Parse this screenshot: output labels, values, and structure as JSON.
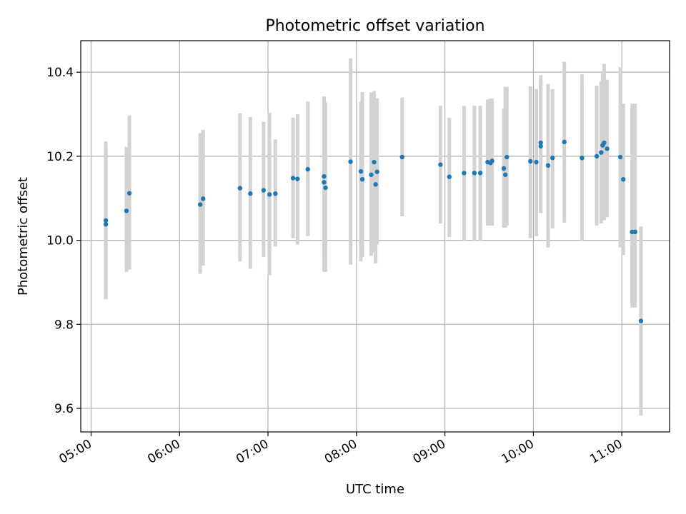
{
  "chart_data": {
    "type": "scatter",
    "title": "Photometric offset variation",
    "xlabel": "UTC time",
    "ylabel": "Photometric offset",
    "x_ticks": [
      "05:00",
      "06:00",
      "07:00",
      "08:00",
      "09:00",
      "10:00",
      "11:00"
    ],
    "x_tick_values": [
      5.0,
      6.0,
      7.0,
      8.0,
      9.0,
      10.0,
      11.0
    ],
    "y_ticks": [
      "9.6",
      "9.8",
      "10.0",
      "10.2",
      "10.4"
    ],
    "y_tick_values": [
      9.6,
      9.8,
      10.0,
      10.2,
      10.4
    ],
    "xlim": [
      4.883,
      11.54
    ],
    "ylim": [
      9.544,
      10.475
    ],
    "grid": true,
    "point_color": "#1f77b4",
    "errorbar_color": "#d3d3d3",
    "series": [
      {
        "x": [
          "05:10",
          "05:10",
          "05:24",
          "05:26",
          "06:14",
          "06:16",
          "06:41",
          "06:48",
          "06:57",
          "07:01",
          "07:05",
          "07:17",
          "07:20",
          "07:27",
          "07:38",
          "07:38",
          "07:39",
          "07:56",
          "08:03",
          "08:04",
          "08:10",
          "08:12",
          "08:13",
          "08:14",
          "08:31",
          "08:57",
          "09:03",
          "09:13",
          "09:20",
          "09:24",
          "09:29",
          "09:31",
          "09:32",
          "09:40",
          "09:41",
          "09:42",
          "09:58",
          "10:02",
          "10:05",
          "10:05",
          "10:10",
          "10:13",
          "10:21",
          "10:33",
          "10:33",
          "10:43",
          "10:46",
          "10:47",
          "10:48",
          "10:50",
          "10:59",
          "11:01",
          "11:07",
          "11:09",
          "11:13"
        ],
        "y": [
          10.038,
          10.047,
          10.07,
          10.112,
          10.085,
          10.099,
          10.124,
          10.111,
          10.119,
          10.109,
          10.111,
          10.148,
          10.146,
          10.169,
          10.152,
          10.138,
          10.125,
          10.187,
          10.164,
          10.145,
          10.156,
          10.186,
          10.133,
          10.163,
          10.198,
          10.18,
          10.151,
          10.16,
          10.16,
          10.16,
          10.186,
          10.184,
          10.189,
          10.171,
          10.156,
          10.198,
          10.188,
          10.186,
          10.232,
          10.224,
          10.178,
          10.196,
          10.234,
          10.196,
          10.196,
          10.2,
          10.209,
          10.226,
          10.232,
          10.218,
          10.198,
          10.145,
          10.02,
          10.02,
          9.808
        ],
        "err_low": [
          9.86,
          9.86,
          9.925,
          9.93,
          9.92,
          9.94,
          9.95,
          9.932,
          9.96,
          9.917,
          9.985,
          10.005,
          9.99,
          10.01,
          9.96,
          9.925,
          9.925,
          9.942,
          9.95,
          9.96,
          9.963,
          9.97,
          9.945,
          9.99,
          10.057,
          10.04,
          10.008,
          10.0,
          10.0,
          10.0,
          10.035,
          10.035,
          10.035,
          10.03,
          10.03,
          10.035,
          10.005,
          10.01,
          10.065,
          10.065,
          9.983,
          10.028,
          10.042,
          10.0,
          10.003,
          10.035,
          10.04,
          10.048,
          10.048,
          10.055,
          9.983,
          9.965,
          9.84,
          9.84,
          9.583
        ],
        "err_high": [
          10.22,
          10.235,
          10.222,
          10.297,
          10.255,
          10.263,
          10.302,
          10.293,
          10.282,
          10.303,
          10.24,
          10.292,
          10.3,
          10.33,
          10.342,
          10.342,
          10.328,
          10.433,
          10.33,
          10.353,
          10.352,
          10.355,
          10.32,
          10.338,
          10.34,
          10.32,
          10.292,
          10.32,
          10.32,
          10.32,
          10.335,
          10.337,
          10.337,
          10.313,
          10.365,
          10.365,
          10.366,
          10.36,
          10.393,
          10.385,
          10.372,
          10.36,
          10.425,
          10.395,
          10.375,
          10.368,
          10.378,
          10.4,
          10.42,
          10.382,
          10.412,
          10.325,
          10.325,
          10.325,
          10.033
        ]
      }
    ]
  }
}
